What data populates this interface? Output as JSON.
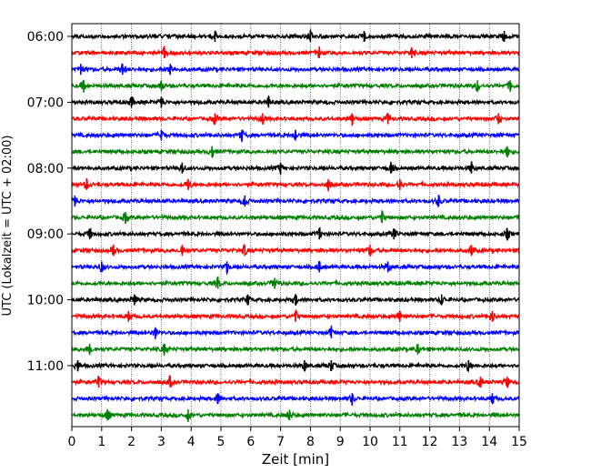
{
  "chart_data": {
    "type": "line",
    "title": "",
    "xlabel": "Zeit  [min]",
    "ylabel": "UTC (Lokalzeit = UTC + 02:00)",
    "xlim": [
      0,
      15
    ],
    "x_ticks": [
      "0",
      "1",
      "2",
      "3",
      "4",
      "5",
      "6",
      "7",
      "8",
      "9",
      "10",
      "11",
      "12",
      "13",
      "14",
      "15"
    ],
    "y_time_ticks": [
      "06:00",
      "07:00",
      "08:00",
      "09:00",
      "10:00",
      "11:00"
    ],
    "grid": {
      "x": true,
      "y": false
    },
    "row_interval_min": 15,
    "row_start": "06:00",
    "color_cycle": [
      "#000000",
      "#ff0000",
      "#0000ff",
      "#008000"
    ],
    "rows": [
      {
        "start": "06:00",
        "color": "#000000",
        "events_min": [
          4.8,
          8.0,
          9.8,
          14.5
        ]
      },
      {
        "start": "06:15",
        "color": "#ff0000",
        "events_min": [
          3.1,
          8.3,
          11.4
        ]
      },
      {
        "start": "06:30",
        "color": "#0000ff",
        "events_min": [
          0.3,
          1.7,
          3.3
        ]
      },
      {
        "start": "06:45",
        "color": "#008000",
        "events_min": [
          0.4,
          3.0,
          13.6,
          14.7
        ]
      },
      {
        "start": "07:00",
        "color": "#000000",
        "events_min": [
          2.0,
          3.0,
          6.6
        ]
      },
      {
        "start": "07:15",
        "color": "#ff0000",
        "events_min": [
          4.8,
          6.4,
          9.4,
          10.6,
          14.3
        ]
      },
      {
        "start": "07:30",
        "color": "#0000ff",
        "events_min": [
          3.0,
          5.7,
          7.5
        ]
      },
      {
        "start": "07:45",
        "color": "#008000",
        "events_min": [
          4.7,
          14.6
        ]
      },
      {
        "start": "08:00",
        "color": "#000000",
        "events_min": [
          3.7,
          7.0,
          10.7,
          13.4
        ]
      },
      {
        "start": "08:15",
        "color": "#ff0000",
        "events_min": [
          0.5,
          3.9,
          8.6,
          11.0
        ]
      },
      {
        "start": "08:30",
        "color": "#0000ff",
        "events_min": [
          0.1,
          5.8,
          12.3
        ]
      },
      {
        "start": "08:45",
        "color": "#008000",
        "events_min": [
          1.8,
          10.4
        ]
      },
      {
        "start": "09:00",
        "color": "#000000",
        "events_min": [
          0.6,
          8.3,
          10.8,
          14.6
        ]
      },
      {
        "start": "09:15",
        "color": "#ff0000",
        "events_min": [
          1.4,
          3.7,
          5.8,
          10.0,
          13.4
        ]
      },
      {
        "start": "09:30",
        "color": "#0000ff",
        "events_min": [
          1.0,
          5.2,
          8.3,
          10.6
        ]
      },
      {
        "start": "09:45",
        "color": "#008000",
        "events_min": [
          4.9,
          6.8
        ]
      },
      {
        "start": "10:00",
        "color": "#000000",
        "events_min": [
          2.1,
          5.9,
          7.5,
          12.4
        ]
      },
      {
        "start": "10:15",
        "color": "#ff0000",
        "events_min": [
          1.9,
          7.5,
          11.0,
          14.1
        ]
      },
      {
        "start": "10:30",
        "color": "#0000ff",
        "events_min": [
          2.8,
          8.7
        ]
      },
      {
        "start": "10:45",
        "color": "#008000",
        "events_min": [
          0.6,
          3.1,
          11.6
        ]
      },
      {
        "start": "11:00",
        "color": "#000000",
        "events_min": [
          0.2,
          7.8,
          8.7,
          13.3
        ]
      },
      {
        "start": "11:15",
        "color": "#ff0000",
        "events_min": [
          0.9,
          3.3,
          13.7,
          14.6
        ]
      },
      {
        "start": "11:30",
        "color": "#0000ff",
        "events_min": [
          4.9,
          9.4,
          14.1
        ]
      },
      {
        "start": "11:45",
        "color": "#008000",
        "events_min": [
          1.2,
          3.9,
          7.3
        ]
      }
    ]
  }
}
